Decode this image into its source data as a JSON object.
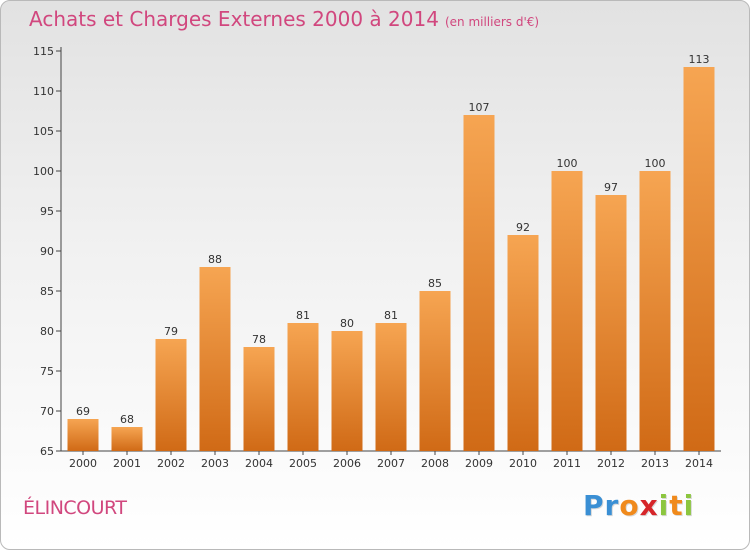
{
  "chart_title": "Achats et Charges Externes 2000 à 2014",
  "chart_unit": "(en milliers d'€)",
  "commune": "ÉLINCOURT",
  "brand": {
    "name": "Proxiti",
    "letters": [
      "P",
      "r",
      "o",
      "x",
      "i",
      "t",
      "i"
    ],
    "colors": [
      "#3a8fd4",
      "#3a8fd4",
      "#f08a1c",
      "#d6262a",
      "#8cc63f",
      "#f08a1c",
      "#8cc63f"
    ]
  },
  "colors": {
    "bar_light": "#f6a552",
    "bar_dark": "#d06a16",
    "title": "#d1477e"
  },
  "chart_data": {
    "type": "bar",
    "title": "Achats et Charges Externes 2000 à 2014",
    "subtitle": "(en milliers d'€)",
    "categories": [
      "2000",
      "2001",
      "2002",
      "2003",
      "2004",
      "2005",
      "2006",
      "2007",
      "2008",
      "2009",
      "2010",
      "2011",
      "2012",
      "2013",
      "2014"
    ],
    "values": [
      69,
      68,
      79,
      88,
      78,
      81,
      80,
      81,
      85,
      107,
      92,
      100,
      97,
      100,
      113
    ],
    "ylim": [
      65,
      115
    ],
    "yticks": [
      65,
      70,
      75,
      80,
      85,
      90,
      95,
      100,
      105,
      110,
      115
    ],
    "xlabel": "",
    "ylabel": "",
    "grid": false
  }
}
